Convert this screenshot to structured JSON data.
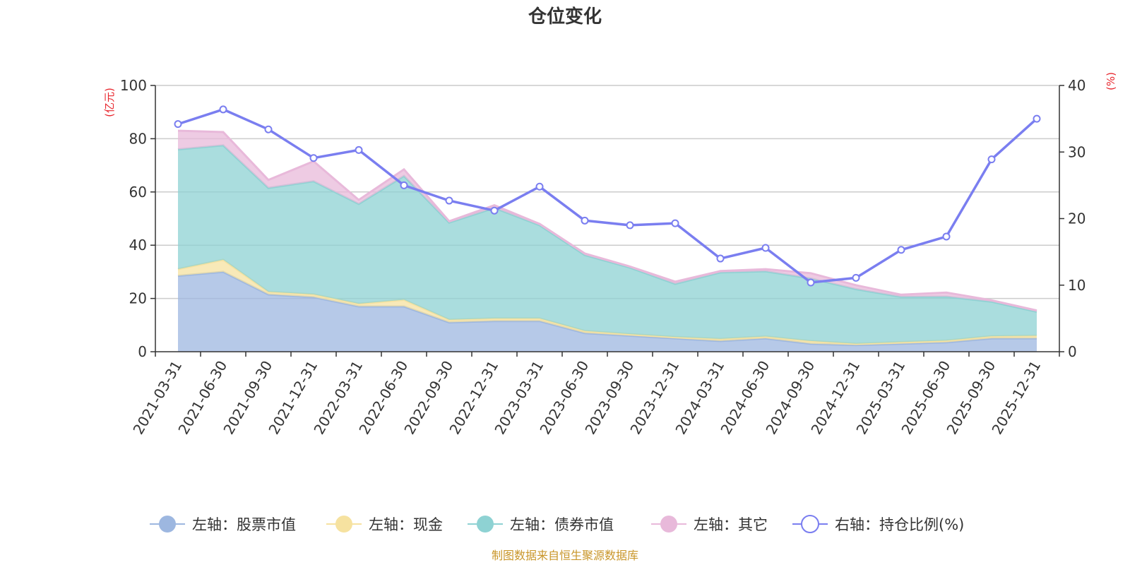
{
  "chart_data": {
    "type": "area",
    "title": "仓位变化",
    "categories": [
      "2021-03-31",
      "2021-06-30",
      "2021-09-30",
      "2021-12-31",
      "2022-03-31",
      "2022-06-30",
      "2022-09-30",
      "2022-12-31",
      "2023-03-31",
      "2023-06-30",
      "2023-09-30",
      "2023-12-31",
      "2024-03-31",
      "2024-06-30",
      "2024-09-30",
      "2024-12-31",
      "2025-03-31",
      "2025-06-30",
      "2025-09-30",
      "2025-12-31"
    ],
    "left_axis": {
      "unit_label": "(亿元)",
      "ylim": [
        0,
        100
      ],
      "ticks": [
        "0",
        "20",
        "40",
        "60",
        "80",
        "100"
      ]
    },
    "right_axis": {
      "unit_label": "(%)",
      "ylim": [
        0,
        40
      ],
      "ticks": [
        "0",
        "10",
        "20",
        "30",
        "40"
      ]
    },
    "stacked_series": [
      {
        "name": "左轴：股票市值",
        "color": "#9db7e0",
        "values": [
          28.5,
          30,
          21.5,
          20.5,
          17,
          17,
          11,
          11.5,
          11.5,
          7,
          6,
          5,
          4,
          5,
          3,
          2.5,
          3,
          3.5,
          5,
          5
        ]
      },
      {
        "name": "左轴：现金",
        "color": "#f6e2a0",
        "values": [
          2.5,
          4.5,
          1,
          1,
          1,
          2.5,
          1,
          1,
          1,
          0.8,
          0.6,
          0.5,
          0.8,
          0.7,
          1,
          0.5,
          0.6,
          0.7,
          0.8,
          1
        ]
      },
      {
        "name": "左轴：债券市值",
        "color": "#8ed2d3",
        "values": [
          45,
          43,
          39,
          42.5,
          37.5,
          46.5,
          36.5,
          41.5,
          35,
          28.5,
          25,
          20,
          25,
          24.5,
          23.5,
          20.5,
          17,
          16.5,
          13,
          9
        ]
      },
      {
        "name": "左轴：其它",
        "color": "#e8b9da",
        "values": [
          7,
          5,
          3,
          7.5,
          1.5,
          2.5,
          0.5,
          1,
          0.5,
          0.6,
          0.4,
          0.8,
          0.5,
          0.8,
          2,
          1.5,
          0.8,
          1.5,
          0.5,
          0.5
        ]
      }
    ],
    "line_series": {
      "name": "右轴：持仓比例(%)",
      "color": "#7a7ef0",
      "axis": "right",
      "values": [
        34.2,
        36.4,
        33.4,
        29.1,
        30.3,
        25,
        22.7,
        21.2,
        24.8,
        19.7,
        19,
        19.3,
        14,
        15.6,
        10.4,
        11.1,
        15.3,
        17.3,
        28.9,
        35
      ]
    },
    "legend": [
      "左轴：股票市值",
      "左轴：现金",
      "左轴：债券市值",
      "左轴：其它",
      "右轴：持仓比例(%)"
    ],
    "legend_placement": "bottom",
    "grid": true
  },
  "footer": {
    "source": "制图数据来自恒生聚源数据库"
  }
}
